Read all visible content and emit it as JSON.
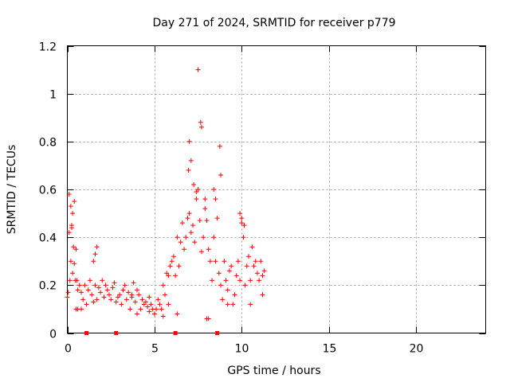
{
  "chart_data": {
    "type": "scatter",
    "title": "Day 271 of 2024, SRMTID for receiver p779",
    "xlabel": "GPS time / hours",
    "ylabel": "SRMTID / TECUs",
    "xlim": [
      0,
      24
    ],
    "ylim": [
      0,
      1.2
    ],
    "xticks": [
      0,
      5,
      10,
      15,
      20
    ],
    "xtick_labels": [
      "0",
      "5",
      "10",
      "15",
      "20"
    ],
    "yticks": [
      0,
      0.2,
      0.4,
      0.6,
      0.8,
      1.0,
      1.2
    ],
    "ytick_labels": [
      "0",
      "0.2",
      "0.4",
      "0.6",
      "0.8",
      "1",
      "1.2"
    ],
    "grid": true,
    "marker": "plus",
    "color": "#ff0000",
    "series": [
      {
        "name": "SRMTID",
        "x": [
          0.0,
          0.05,
          0.1,
          0.15,
          0.2,
          0.25,
          0.3,
          0.35,
          0.4,
          0.45,
          0.5,
          0.55,
          0.6,
          0.7,
          0.8,
          0.9,
          1.0,
          1.1,
          1.2,
          1.3,
          1.4,
          1.5,
          1.6,
          1.7,
          1.8,
          1.9,
          2.0,
          2.1,
          2.2,
          2.3,
          2.4,
          2.5,
          2.6,
          2.7,
          2.8,
          2.9,
          3.0,
          3.1,
          3.2,
          3.3,
          3.4,
          3.5,
          3.6,
          3.7,
          3.8,
          3.9,
          4.0,
          4.1,
          4.2,
          4.3,
          4.4,
          4.5,
          4.6,
          4.7,
          4.8,
          4.9,
          5.0,
          5.1,
          5.2,
          5.3,
          5.4,
          5.5,
          5.6,
          5.7,
          5.8,
          5.9,
          6.0,
          6.1,
          6.2,
          6.3,
          6.4,
          6.5,
          6.6,
          6.7,
          6.8,
          6.9,
          7.0,
          7.1,
          7.2,
          7.3,
          7.4,
          7.5,
          7.6,
          7.7,
          7.8,
          7.9,
          8.0,
          8.1,
          8.2,
          8.3,
          8.4,
          8.5,
          8.6,
          8.7,
          8.8,
          8.9,
          9.0,
          9.1,
          9.2,
          9.3,
          9.4,
          9.5,
          9.6,
          9.7,
          9.8,
          9.9,
          10.0,
          10.1,
          10.2,
          10.3,
          10.4,
          10.5,
          10.6,
          10.7,
          10.8,
          10.9,
          11.0,
          11.1,
          11.2,
          11.3,
          0.1,
          0.2,
          0.3,
          0.4,
          0.25,
          1.7,
          1.6,
          7.5,
          7.65,
          7.7,
          8.75,
          8.8,
          7.0,
          7.1,
          7.25,
          6.95,
          8.4,
          7.9,
          8.5,
          8.0,
          9.9,
          10.0,
          10.15,
          7.4,
          0.5,
          0.6,
          1.5,
          0.8,
          3.7,
          4.0,
          4.7,
          5.5,
          5.8,
          6.3,
          9.2,
          10.5,
          11.2,
          8.1
        ],
        "y": [
          0.15,
          0.17,
          0.42,
          0.22,
          0.3,
          0.45,
          0.25,
          0.36,
          0.29,
          0.22,
          0.35,
          0.22,
          0.18,
          0.2,
          0.17,
          0.14,
          0.2,
          0.12,
          0.18,
          0.22,
          0.16,
          0.3,
          0.2,
          0.14,
          0.19,
          0.17,
          0.22,
          0.15,
          0.2,
          0.18,
          0.16,
          0.14,
          0.19,
          0.21,
          0.13,
          0.15,
          0.16,
          0.12,
          0.18,
          0.2,
          0.14,
          0.17,
          0.1,
          0.15,
          0.21,
          0.13,
          0.18,
          0.16,
          0.1,
          0.14,
          0.12,
          0.13,
          0.11,
          0.15,
          0.12,
          0.1,
          0.08,
          0.1,
          0.14,
          0.12,
          0.1,
          0.2,
          0.16,
          0.25,
          0.24,
          0.28,
          0.3,
          0.32,
          0.24,
          0.4,
          0.28,
          0.38,
          0.46,
          0.35,
          0.4,
          0.48,
          0.5,
          0.42,
          0.45,
          0.38,
          0.56,
          0.6,
          0.47,
          0.34,
          0.4,
          0.52,
          0.47,
          0.35,
          0.3,
          0.22,
          0.4,
          0.3,
          0.48,
          0.25,
          0.2,
          0.14,
          0.3,
          0.22,
          0.18,
          0.26,
          0.28,
          0.12,
          0.16,
          0.24,
          0.3,
          0.22,
          0.46,
          0.4,
          0.2,
          0.28,
          0.32,
          0.22,
          0.36,
          0.28,
          0.3,
          0.25,
          0.22,
          0.3,
          0.24,
          0.26,
          0.58,
          0.53,
          0.5,
          0.55,
          0.44,
          0.36,
          0.33,
          1.1,
          0.88,
          0.86,
          0.78,
          0.66,
          0.8,
          0.72,
          0.62,
          0.68,
          0.6,
          0.56,
          0.56,
          0.06,
          0.5,
          0.48,
          0.45,
          0.59,
          0.1,
          0.1,
          0.13,
          0.1,
          0.16,
          0.08,
          0.09,
          0.07,
          0.12,
          0.08,
          0.12,
          0.12,
          0.16,
          0.06
        ]
      }
    ],
    "zero_markers_x": [
      1.1,
      2.8,
      6.2,
      8.6
    ]
  }
}
